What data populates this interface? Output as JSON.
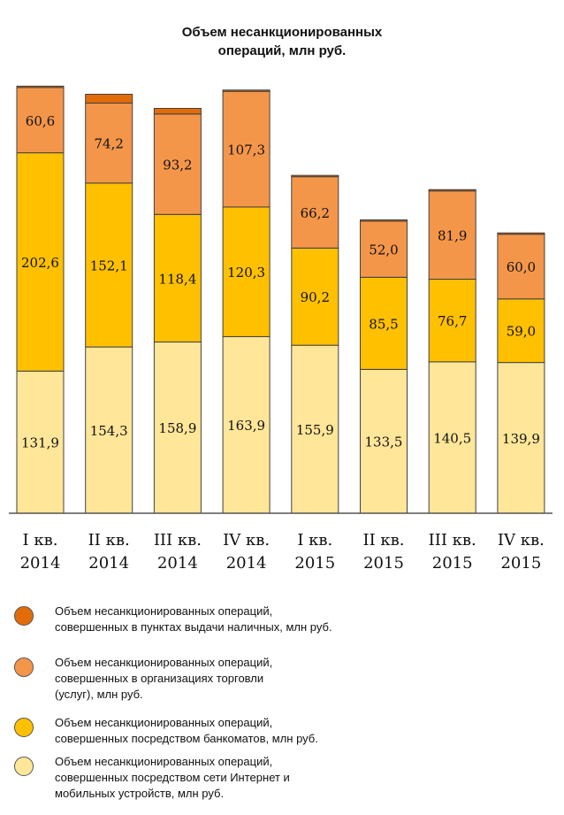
{
  "chart_data": {
    "type": "bar",
    "stacked": true,
    "title": "Объем несанкционированных\nопераций, млн руб.",
    "xlabel": "",
    "ylabel": "",
    "ylim": [
      0,
      500
    ],
    "categories": [
      [
        "I кв.",
        "2014"
      ],
      [
        "II кв.",
        "2014"
      ],
      [
        "III кв.",
        "2014"
      ],
      [
        "IV кв.",
        "2014"
      ],
      [
        "I кв.",
        "2015"
      ],
      [
        "II кв.",
        "2015"
      ],
      [
        "III кв.",
        "2015"
      ],
      [
        "IV кв.",
        "2015"
      ]
    ],
    "series": [
      {
        "name": "Объем несанкционированных операций,\nсовершенных посредством сети Интернет и\nмобильных устройств, млн руб.",
        "color": "#FFE699",
        "values": [
          131.9,
          154.3,
          158.9,
          163.9,
          155.9,
          133.5,
          140.5,
          139.9
        ],
        "labels": [
          "131,9",
          "154,3",
          "158,9",
          "163,9",
          "155,9",
          "133,5",
          "140,5",
          "139,9"
        ]
      },
      {
        "name": "Объем несанкционированных операций,\nсовершенных посредством банкоматов, млн руб.",
        "color": "#FFC000",
        "values": [
          202.6,
          152.1,
          118.4,
          120.3,
          90.2,
          85.5,
          76.7,
          59.0
        ],
        "labels": [
          "202,6",
          "152,1",
          "118,4",
          "120,3",
          "90,2",
          "85,5",
          "76,7",
          "59,0"
        ]
      },
      {
        "name": "Объем несанкционированных операций,\nсовершенных в организациях торговли\n(услуг), млн руб.",
        "color": "#F4964A",
        "values": [
          60.6,
          74.2,
          93.2,
          107.3,
          66.2,
          52.0,
          81.9,
          60.0
        ],
        "labels": [
          "60,6",
          "74,2",
          "93,2",
          "107,3",
          "66,2",
          "52,0",
          "81,9",
          "60,0"
        ]
      },
      {
        "name": "Объем несанкционированных операций,\nсовершенных в пунктах выдачи наличных, млн руб.",
        "color": "#E36C0A",
        "values": [
          0.7,
          8.2,
          5.2,
          0.9,
          0.8,
          0.3,
          0.3,
          1.1
        ],
        "labels": [
          "",
          "",
          "",
          "",
          "",
          "",
          "",
          ""
        ]
      }
    ],
    "legend_order": [
      3,
      2,
      1,
      0
    ],
    "legend_position": "bottom"
  }
}
